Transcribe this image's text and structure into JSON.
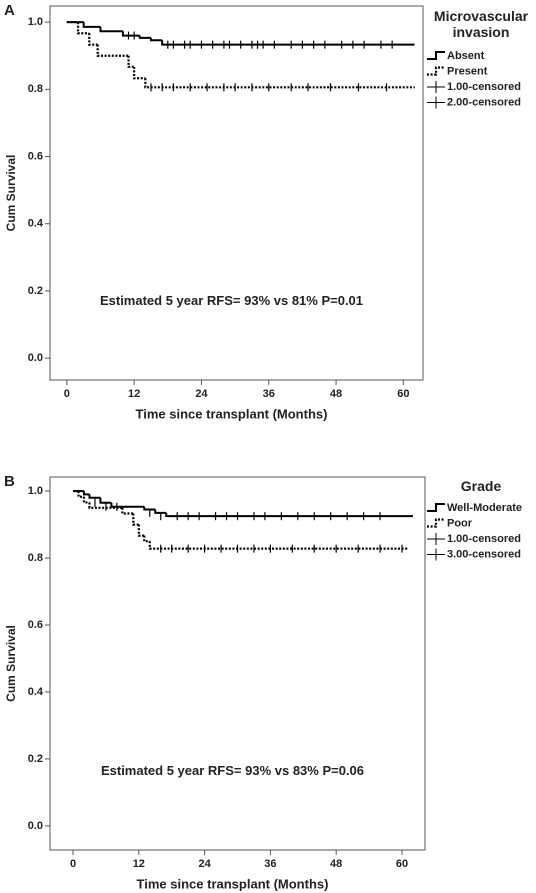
{
  "chart_data": [
    {
      "type": "line",
      "panel_label": "A",
      "legend_title": "Microvascular invasion",
      "xlabel": "Time since transplant (Months)",
      "ylabel": "Cum Survival",
      "annotation": "Estimated 5 year RFS= 93% vs 81% P=0.01",
      "xlim": [
        -3,
        63.5
      ],
      "ylim": [
        -0.065,
        1.048
      ],
      "xticks": [
        0,
        12,
        24,
        36,
        48,
        60
      ],
      "yticks": [
        {
          "value": 0,
          "label": "0.0"
        },
        0.2,
        0.4,
        0.6,
        0.8,
        {
          "value": 1,
          "label": "1.0"
        }
      ],
      "series": [
        {
          "name": "Absent",
          "color": "#000000",
          "line_style": "solid",
          "x": [
            0,
            3,
            6,
            10,
            13,
            15,
            17,
            62
          ],
          "values": [
            1.0,
            0.986,
            0.973,
            0.96,
            0.953,
            0.946,
            0.933,
            0.933
          ]
        },
        {
          "name": "Present",
          "color": "#000000",
          "line_style": "dotted",
          "x": [
            0,
            2,
            4,
            5.5,
            11,
            12,
            14,
            62
          ],
          "values": [
            1.0,
            0.967,
            0.933,
            0.9,
            0.867,
            0.833,
            0.806,
            0.806
          ]
        },
        {
          "name": "1.00-censored",
          "color": "#000000",
          "marker": "plus",
          "x": [
            11,
            12,
            18,
            19,
            21,
            22,
            24,
            26,
            28,
            29,
            31,
            33,
            34,
            35,
            37,
            40,
            42,
            44,
            46,
            49,
            51,
            53,
            56,
            58
          ],
          "values": [
            0.96,
            0.96,
            0.933,
            0.933,
            0.933,
            0.933,
            0.933,
            0.933,
            0.933,
            0.933,
            0.933,
            0.933,
            0.933,
            0.933,
            0.933,
            0.933,
            0.933,
            0.933,
            0.933,
            0.933,
            0.933,
            0.933,
            0.933,
            0.933
          ]
        },
        {
          "name": "2.00-censored",
          "color": "#000000",
          "marker": "plus",
          "x": [
            15,
            17,
            19,
            22,
            25,
            28,
            30,
            33,
            36,
            40,
            43,
            47,
            52,
            57
          ],
          "values": [
            0.806,
            0.806,
            0.806,
            0.806,
            0.806,
            0.806,
            0.806,
            0.806,
            0.806,
            0.806,
            0.806,
            0.806,
            0.806,
            0.806
          ]
        }
      ]
    },
    {
      "type": "line",
      "panel_label": "B",
      "legend_title": "Grade",
      "xlabel": "Time since transplant (Months)",
      "ylabel": "Cum Survival",
      "annotation": "Estimated 5 year RFS= 93% vs 83% P=0.06",
      "xlim": [
        -4.2,
        64.2
      ],
      "ylim": [
        -0.072,
        1.042
      ],
      "xticks": [
        0,
        12,
        24,
        36,
        48,
        60
      ],
      "yticks": [
        {
          "value": 0,
          "label": "0.0"
        },
        0.2,
        0.4,
        0.6,
        0.8,
        {
          "value": 1,
          "label": "1.0"
        }
      ],
      "series": [
        {
          "name": "Well-Moderate",
          "color": "#000000",
          "line_style": "solid",
          "x": [
            0,
            2,
            3,
            5,
            7,
            13,
            15,
            17,
            62
          ],
          "values": [
            1.0,
            0.99,
            0.98,
            0.965,
            0.953,
            0.945,
            0.935,
            0.925,
            0.925
          ]
        },
        {
          "name": "Poor",
          "color": "#000000",
          "line_style": "dotted",
          "x": [
            0,
            1,
            2,
            3,
            9,
            11,
            12,
            13,
            14,
            61
          ],
          "values": [
            1.0,
            0.983,
            0.966,
            0.95,
            0.933,
            0.9,
            0.867,
            0.85,
            0.828,
            0.828
          ]
        },
        {
          "name": "1.00-censored",
          "color": "#000000",
          "marker": "plus",
          "x": [
            4,
            6,
            8,
            14,
            16,
            19,
            21,
            23,
            26,
            28,
            30,
            33,
            35,
            38,
            41,
            44,
            47,
            50,
            53,
            56
          ],
          "values": [
            0.965,
            0.953,
            0.953,
            0.935,
            0.925,
            0.925,
            0.925,
            0.925,
            0.925,
            0.925,
            0.925,
            0.925,
            0.925,
            0.925,
            0.925,
            0.925,
            0.925,
            0.925,
            0.925,
            0.925
          ]
        },
        {
          "name": "3.00-censored",
          "color": "#000000",
          "marker": "plus",
          "x": [
            16,
            18,
            21,
            24,
            27,
            30,
            33,
            36,
            40,
            44,
            48,
            52,
            56,
            60
          ],
          "values": [
            0.828,
            0.828,
            0.828,
            0.828,
            0.828,
            0.828,
            0.828,
            0.828,
            0.828,
            0.828,
            0.828,
            0.828,
            0.828,
            0.828
          ]
        }
      ]
    }
  ]
}
